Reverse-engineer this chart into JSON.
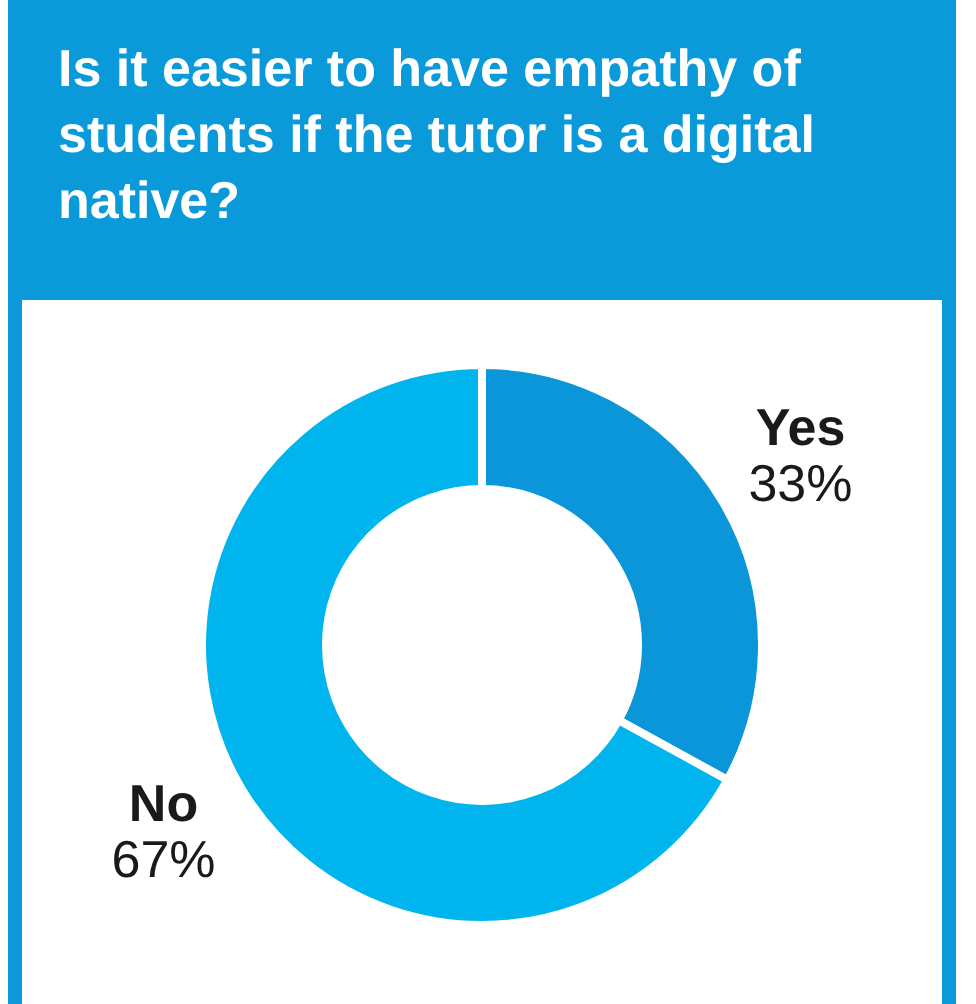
{
  "chart_data": {
    "type": "donut",
    "title": "Is it easier to have empathy of students if the tutor is a digital native?",
    "categories": [
      "Yes",
      "No"
    ],
    "values": [
      33,
      67
    ],
    "value_labels": [
      "33%",
      "67%"
    ],
    "colors": [
      "#0a96d8",
      "#00b5ee"
    ]
  }
}
